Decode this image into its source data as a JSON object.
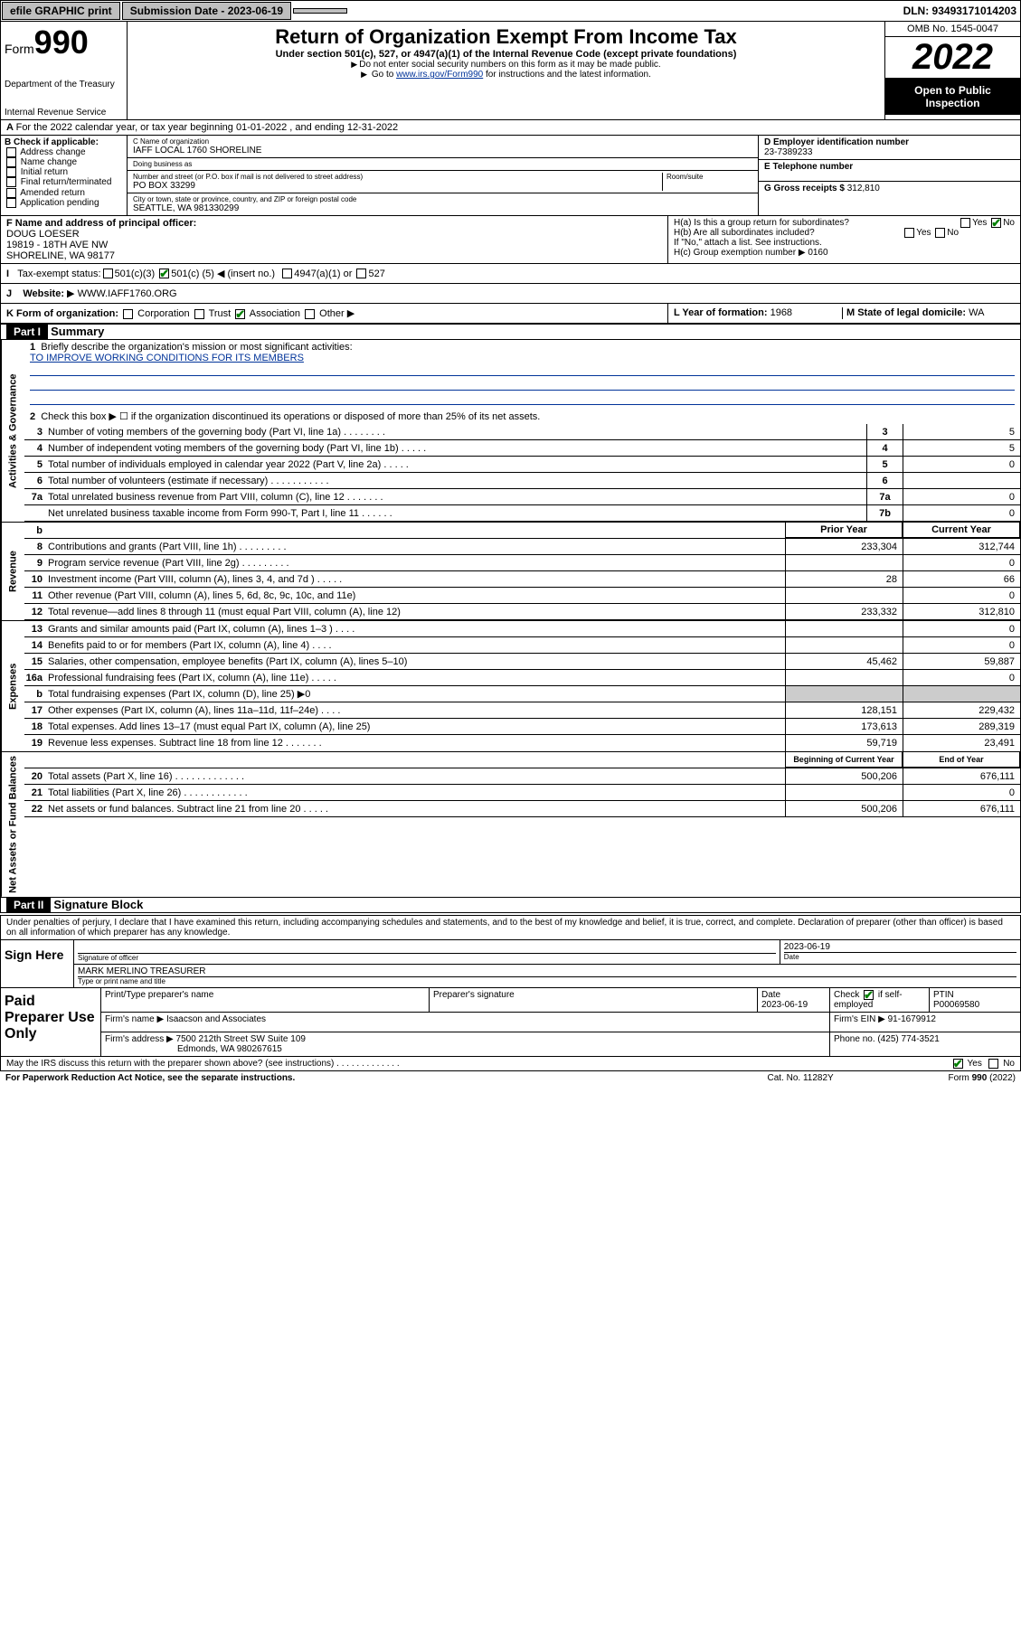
{
  "colors": {
    "link": "#003399",
    "check": "#008000",
    "black": "#000000",
    "grey": "#bfbfbf",
    "lightgrey": "#cccccc"
  },
  "fonts": {
    "base": 11,
    "title": 22,
    "form_num": 36,
    "year": 40,
    "part_title": 13,
    "small": 10
  },
  "topbar": {
    "efile": "efile GRAPHIC print",
    "submission_label": "Submission Date - 2023-06-19",
    "dln": "DLN: 93493171014203"
  },
  "header": {
    "form": "Form",
    "form_num": "990",
    "dept": "Department of the Treasury",
    "irs": "Internal Revenue Service",
    "title": "Return of Organization Exempt From Income Tax",
    "sub": "Under section 501(c), 527, or 4947(a)(1) of the Internal Revenue Code (except private foundations)",
    "note1": "Do not enter social security numbers on this form as it may be made public.",
    "note2_pre": "Go to ",
    "note2_link": "www.irs.gov/Form990",
    "note2_post": " for instructions and the latest information.",
    "omb": "OMB No. 1545-0047",
    "year": "2022",
    "inspect": "Open to Public Inspection"
  },
  "line_a": "For the 2022 calendar year, or tax year beginning 01-01-2022   , and ending 12-31-2022",
  "box_b": {
    "label": "B Check if applicable:",
    "items": [
      "Address change",
      "Name change",
      "Initial return",
      "Final return/terminated",
      "Amended return",
      "Application pending"
    ]
  },
  "box_c": {
    "name_label": "C Name of organization",
    "name": "IAFF LOCAL 1760 SHORELINE",
    "dba_label": "Doing business as",
    "dba": "",
    "street_label": "Number and street (or P.O. box if mail is not delivered to street address)",
    "room_label": "Room/suite",
    "street": "PO BOX 33299",
    "city_label": "City or town, state or province, country, and ZIP or foreign postal code",
    "city": "SEATTLE, WA  981330299"
  },
  "box_d": {
    "label": "D Employer identification number",
    "value": "23-7389233"
  },
  "box_e": {
    "label": "E Telephone number",
    "value": ""
  },
  "box_g": {
    "label": "G Gross receipts $",
    "value": "312,810"
  },
  "box_f": {
    "label": "F Name and address of principal officer:",
    "name": "DOUG LOESER",
    "addr1": "19819 - 18TH AVE NW",
    "addr2": "SHORELINE, WA  98177"
  },
  "box_h": {
    "ha_label": "H(a)  Is this a group return for subordinates?",
    "ha_yes": "Yes",
    "ha_no": "No",
    "hb_label": "H(b)  Are all subordinates included?",
    "hb_note": "If \"No,\" attach a list. See instructions.",
    "hc_label": "H(c)  Group exemption number",
    "hc_value": "0160"
  },
  "row_i": {
    "label": "Tax-exempt status:",
    "c3": "501(c)(3)",
    "c5_pre": "501(c) (",
    "c5_num": "5",
    "c5_post": ") ◀ (insert no.)",
    "a4947": "4947(a)(1) or",
    "s527": "527"
  },
  "row_j": {
    "label": "Website:",
    "value": "WWW.IAFF1760.ORG"
  },
  "row_k": {
    "label": "K Form of organization:",
    "corp": "Corporation",
    "trust": "Trust",
    "assoc": "Association",
    "other": "Other",
    "l_label": "L Year of formation:",
    "l_value": "1968",
    "m_label": "M State of legal domicile:",
    "m_value": "WA"
  },
  "part1": {
    "header": "Part I",
    "title": "Summary",
    "line1_label": "Briefly describe the organization's mission or most significant activities:",
    "line1_value": "TO IMPROVE WORKING CONDITIONS FOR ITS MEMBERS",
    "line2": "Check this box ▶ ☐  if the organization discontinued its operations or disposed of more than 25% of its net assets.",
    "gov_lines": [
      {
        "n": "3",
        "desc": "Number of voting members of the governing body (Part VI, line 1a)  .  .  .  .  .  .  .  .",
        "box": "3",
        "val": "5"
      },
      {
        "n": "4",
        "desc": "Number of independent voting members of the governing body (Part VI, line 1b)  .  .  .  .  .",
        "box": "4",
        "val": "5"
      },
      {
        "n": "5",
        "desc": "Total number of individuals employed in calendar year 2022 (Part V, line 2a)  .  .  .  .  .",
        "box": "5",
        "val": "0"
      },
      {
        "n": "6",
        "desc": "Total number of volunteers (estimate if necessary)  .  .  .  .  .  .  .  .  .  .  .",
        "box": "6",
        "val": ""
      },
      {
        "n": "7a",
        "desc": "Total unrelated business revenue from Part VIII, column (C), line 12  .  .  .  .  .  .  .",
        "box": "7a",
        "val": "0"
      },
      {
        "n": "",
        "desc": "Net unrelated business taxable income from Form 990-T, Part I, line 11  .  .  .  .  .  .",
        "box": "7b",
        "val": "0"
      }
    ],
    "col_headers": {
      "b": "b",
      "prior": "Prior Year",
      "current": "Current Year"
    },
    "revenue_lines": [
      {
        "n": "8",
        "desc": "Contributions and grants (Part VIII, line 1h)  .  .  .  .  .  .  .  .  .",
        "prior": "233,304",
        "curr": "312,744"
      },
      {
        "n": "9",
        "desc": "Program service revenue (Part VIII, line 2g)  .  .  .  .  .  .  .  .  .",
        "prior": "",
        "curr": "0"
      },
      {
        "n": "10",
        "desc": "Investment income (Part VIII, column (A), lines 3, 4, and 7d )  .  .  .  .  .",
        "prior": "28",
        "curr": "66"
      },
      {
        "n": "11",
        "desc": "Other revenue (Part VIII, column (A), lines 5, 6d, 8c, 9c, 10c, and 11e)",
        "prior": "",
        "curr": "0"
      },
      {
        "n": "12",
        "desc": "Total revenue—add lines 8 through 11 (must equal Part VIII, column (A), line 12)",
        "prior": "233,332",
        "curr": "312,810"
      }
    ],
    "expense_lines": [
      {
        "n": "13",
        "desc": "Grants and similar amounts paid (Part IX, column (A), lines 1–3 )  .  .  .  .",
        "prior": "",
        "curr": "0"
      },
      {
        "n": "14",
        "desc": "Benefits paid to or for members (Part IX, column (A), line 4)  .  .  .  .",
        "prior": "",
        "curr": "0"
      },
      {
        "n": "15",
        "desc": "Salaries, other compensation, employee benefits (Part IX, column (A), lines 5–10)",
        "prior": "45,462",
        "curr": "59,887"
      },
      {
        "n": "16a",
        "desc": "Professional fundraising fees (Part IX, column (A), line 11e)  .  .  .  .  .",
        "prior": "",
        "curr": "0"
      },
      {
        "n": "b",
        "desc": "Total fundraising expenses (Part IX, column (D), line 25) ▶0",
        "prior": "grey",
        "curr": "grey"
      },
      {
        "n": "17",
        "desc": "Other expenses (Part IX, column (A), lines 11a–11d, 11f–24e)  .  .  .  .",
        "prior": "128,151",
        "curr": "229,432"
      },
      {
        "n": "18",
        "desc": "Total expenses. Add lines 13–17 (must equal Part IX, column (A), line 25)",
        "prior": "173,613",
        "curr": "289,319"
      },
      {
        "n": "19",
        "desc": "Revenue less expenses. Subtract line 18 from line 12  .  .  .  .  .  .  .",
        "prior": "59,719",
        "curr": "23,491"
      }
    ],
    "net_headers": {
      "prior": "Beginning of Current Year",
      "current": "End of Year"
    },
    "net_lines": [
      {
        "n": "20",
        "desc": "Total assets (Part X, line 16)  .  .  .  .  .  .  .  .  .  .  .  .  .",
        "prior": "500,206",
        "curr": "676,111"
      },
      {
        "n": "21",
        "desc": "Total liabilities (Part X, line 26)  .  .  .  .  .  .  .  .  .  .  .  .",
        "prior": "",
        "curr": "0"
      },
      {
        "n": "22",
        "desc": "Net assets or fund balances. Subtract line 21 from line 20  .  .  .  .  .",
        "prior": "500,206",
        "curr": "676,111"
      }
    ],
    "vtabs": {
      "gov": "Activities & Governance",
      "rev": "Revenue",
      "exp": "Expenses",
      "net": "Net Assets or Fund Balances"
    }
  },
  "part2": {
    "header": "Part II",
    "title": "Signature Block",
    "penalty": "Under penalties of perjury, I declare that I have examined this return, including accompanying schedules and statements, and to the best of my knowledge and belief, it is true, correct, and complete. Declaration of preparer (other than officer) is based on all information of which preparer has any knowledge.",
    "sign_here": "Sign Here",
    "sig_officer": "Signature of officer",
    "date_label": "Date",
    "sig_date": "2023-06-19",
    "sig_name": "MARK MERLINO TREASURER",
    "sig_name_label": "Type or print name and title",
    "paid": "Paid Preparer Use Only",
    "prep_name_label": "Print/Type preparer's name",
    "prep_sig_label": "Preparer's signature",
    "prep_date_label": "Date",
    "prep_date": "2023-06-19",
    "check_self": "Check ☑ if self-employed",
    "ptin_label": "PTIN",
    "ptin": "P00069580",
    "firm_name_label": "Firm's name  ▶",
    "firm_name": "Isaacson and Associates",
    "firm_ein_label": "Firm's EIN ▶",
    "firm_ein": "91-1679912",
    "firm_addr_label": "Firm's address ▶",
    "firm_addr1": "7500 212th Street SW Suite 109",
    "firm_addr2": "Edmonds, WA  980267615",
    "phone_label": "Phone no.",
    "phone": "(425) 774-3521",
    "discuss": "May the IRS discuss this return with the preparer shown above? (see instructions)  .  .  .  .  .  .  .  .  .  .  .  .  .",
    "discuss_yes": "Yes",
    "discuss_no": "No"
  },
  "footer": {
    "paperwork": "For Paperwork Reduction Act Notice, see the separate instructions.",
    "cat": "Cat. No. 11282Y",
    "form": "Form 990 (2022)"
  }
}
